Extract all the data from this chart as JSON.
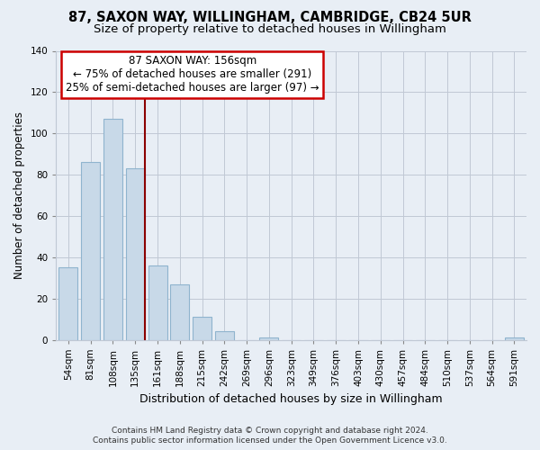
{
  "title": "87, SAXON WAY, WILLINGHAM, CAMBRIDGE, CB24 5UR",
  "subtitle": "Size of property relative to detached houses in Willingham",
  "xlabel": "Distribution of detached houses by size in Willingham",
  "ylabel": "Number of detached properties",
  "bar_labels": [
    "54sqm",
    "81sqm",
    "108sqm",
    "135sqm",
    "161sqm",
    "188sqm",
    "215sqm",
    "242sqm",
    "269sqm",
    "296sqm",
    "323sqm",
    "349sqm",
    "376sqm",
    "403sqm",
    "430sqm",
    "457sqm",
    "484sqm",
    "510sqm",
    "537sqm",
    "564sqm",
    "591sqm"
  ],
  "bar_values": [
    35,
    86,
    107,
    83,
    36,
    27,
    11,
    4,
    0,
    1,
    0,
    0,
    0,
    0,
    0,
    0,
    0,
    0,
    0,
    0,
    1
  ],
  "bar_color": "#c8d9e8",
  "bar_edge_color": "#8fb4ce",
  "vline_color": "#8b0000",
  "annotation_text_line1": "87 SAXON WAY: 156sqm",
  "annotation_text_line2": "← 75% of detached houses are smaller (291)",
  "annotation_text_line3": "25% of semi-detached houses are larger (97) →",
  "annotation_box_color": "#ffffff",
  "annotation_box_edge": "#cc0000",
  "ylim": [
    0,
    140
  ],
  "yticks": [
    0,
    20,
    40,
    60,
    80,
    100,
    120,
    140
  ],
  "footer_line1": "Contains HM Land Registry data © Crown copyright and database right 2024.",
  "footer_line2": "Contains public sector information licensed under the Open Government Licence v3.0.",
  "bg_color": "#e8eef5",
  "plot_bg_color": "#e8eef5",
  "title_fontsize": 10.5,
  "subtitle_fontsize": 9.5,
  "tick_fontsize": 7.5,
  "ylabel_fontsize": 8.5,
  "xlabel_fontsize": 9
}
